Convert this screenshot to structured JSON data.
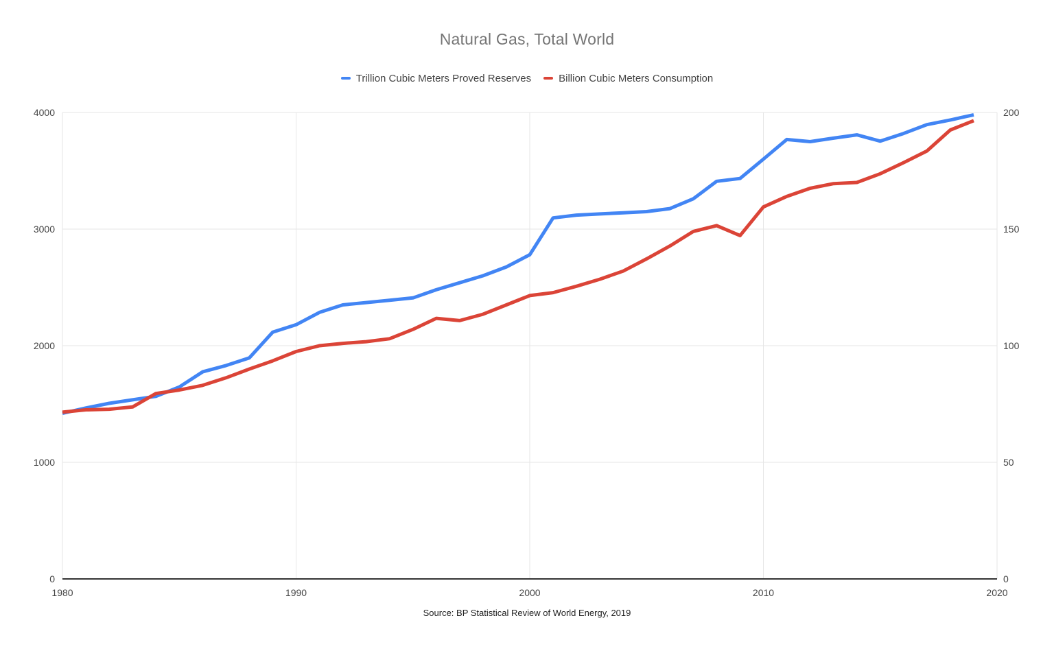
{
  "chart": {
    "title": "Natural Gas, Total World",
    "title_color": "#757575",
    "source": "Source: BP Statistical Review of World Energy, 2019",
    "text_color": "#444444",
    "grid_color": "#e6e6e6",
    "axis_line_color": "#333333",
    "background": "#ffffff"
  },
  "chart_data": {
    "type": "line",
    "title": "Natural Gas, Total World",
    "legend_position": "top",
    "grid": true,
    "x": [
      1980,
      1981,
      1982,
      1983,
      1984,
      1985,
      1986,
      1987,
      1988,
      1989,
      1990,
      1991,
      1992,
      1993,
      1994,
      1995,
      1996,
      1997,
      1998,
      1999,
      2000,
      2001,
      2002,
      2003,
      2004,
      2005,
      2006,
      2007,
      2008,
      2009,
      2010,
      2011,
      2012,
      2013,
      2014,
      2015,
      2016,
      2017,
      2018,
      2019
    ],
    "x_axis": {
      "ticks": [
        1980,
        1990,
        2000,
        2010,
        2020
      ],
      "range": [
        1980,
        2020
      ]
    },
    "left_axis": {
      "ticks": [
        0,
        1000,
        2000,
        3000,
        4000
      ],
      "range": [
        0,
        4000
      ]
    },
    "right_axis": {
      "ticks": [
        0,
        50,
        100,
        150,
        200
      ],
      "range": [
        0,
        200
      ]
    },
    "series": [
      {
        "name": "Trillion Cubic Meters Proved Reserves",
        "color": "#4285F4",
        "axis": "right",
        "unit": "trillion cubic meters",
        "values": [
          71.0,
          73.3,
          75.3,
          76.8,
          78.3,
          82.3,
          88.8,
          91.5,
          94.8,
          105.8,
          109.0,
          114.3,
          117.5,
          118.5,
          119.5,
          120.5,
          124.0,
          127.0,
          130.0,
          133.8,
          139.0,
          154.8,
          156.0,
          156.5,
          157.0,
          157.5,
          158.8,
          163.0,
          170.5,
          171.7,
          180.0,
          188.4,
          187.5,
          189.0,
          190.4,
          187.7,
          191.0,
          194.8,
          196.8,
          199.0
        ]
      },
      {
        "name": "Billion Cubic Meters Consumption",
        "color": "#DB4437",
        "axis": "left",
        "unit": "billion cubic meters",
        "values": [
          1430,
          1450,
          1455,
          1475,
          1590,
          1620,
          1660,
          1725,
          1800,
          1870,
          1950,
          2000,
          2020,
          2035,
          2060,
          2140,
          2235,
          2215,
          2270,
          2350,
          2430,
          2455,
          2510,
          2570,
          2640,
          2745,
          2855,
          2980,
          3030,
          2945,
          3190,
          3280,
          3350,
          3390,
          3400,
          3475,
          3570,
          3670,
          3850,
          3930
        ]
      }
    ],
    "source": "Source: BP Statistical Review of World Energy, 2019"
  }
}
